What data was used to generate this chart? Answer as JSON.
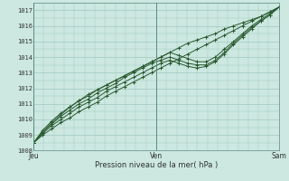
{
  "title": "",
  "xlabel": "Pression niveau de la mer( hPa )",
  "ylabel": "",
  "ylim": [
    1008,
    1017.5
  ],
  "xlim": [
    0,
    48
  ],
  "yticks": [
    1008,
    1009,
    1010,
    1011,
    1012,
    1013,
    1014,
    1015,
    1016,
    1017
  ],
  "xtick_positions": [
    0,
    24,
    48
  ],
  "xtick_labels": [
    "Jeu",
    "Ven",
    "Sam"
  ],
  "bg_color": "#cce8e0",
  "grid_color": "#a0c8c0",
  "line_color": "#2a5a30",
  "series": [
    [
      1008.5,
      1009.0,
      1009.4,
      1009.8,
      1010.1,
      1010.5,
      1010.8,
      1011.1,
      1011.5,
      1011.8,
      1012.1,
      1012.4,
      1012.7,
      1013.0,
      1013.3,
      1013.6,
      1013.9,
      1014.2,
      1014.5,
      1014.8,
      1015.1,
      1015.4,
      1015.7,
      1016.0,
      1016.3,
      1016.6,
      1016.9,
      1017.2
    ],
    [
      1008.5,
      1009.1,
      1009.6,
      1010.0,
      1010.4,
      1010.8,
      1011.1,
      1011.4,
      1011.8,
      1012.1,
      1012.4,
      1012.7,
      1013.0,
      1013.3,
      1013.6,
      1013.8,
      1013.6,
      1013.4,
      1013.3,
      1013.4,
      1013.7,
      1014.2,
      1014.8,
      1015.3,
      1015.8,
      1016.3,
      1016.7,
      1017.2
    ],
    [
      1008.5,
      1009.2,
      1009.7,
      1010.2,
      1010.6,
      1011.0,
      1011.3,
      1011.7,
      1012.0,
      1012.3,
      1012.7,
      1013.0,
      1013.3,
      1013.6,
      1013.8,
      1014.0,
      1013.8,
      1013.6,
      1013.5,
      1013.5,
      1013.8,
      1014.3,
      1014.9,
      1015.4,
      1015.9,
      1016.3,
      1016.7,
      1017.2
    ],
    [
      1008.5,
      1009.3,
      1009.9,
      1010.4,
      1010.8,
      1011.2,
      1011.6,
      1011.9,
      1012.2,
      1012.5,
      1012.8,
      1013.1,
      1013.4,
      1013.7,
      1014.0,
      1014.3,
      1014.1,
      1013.9,
      1013.7,
      1013.7,
      1014.0,
      1014.5,
      1015.0,
      1015.5,
      1016.0,
      1016.4,
      1016.8,
      1017.2
    ],
    [
      1008.5,
      1009.2,
      1009.8,
      1010.3,
      1010.8,
      1011.2,
      1011.5,
      1011.9,
      1012.2,
      1012.5,
      1012.8,
      1013.1,
      1013.4,
      1013.7,
      1014.0,
      1014.3,
      1014.6,
      1014.9,
      1015.1,
      1015.3,
      1015.5,
      1015.8,
      1016.0,
      1016.2,
      1016.4,
      1016.6,
      1016.9,
      1017.2
    ]
  ]
}
